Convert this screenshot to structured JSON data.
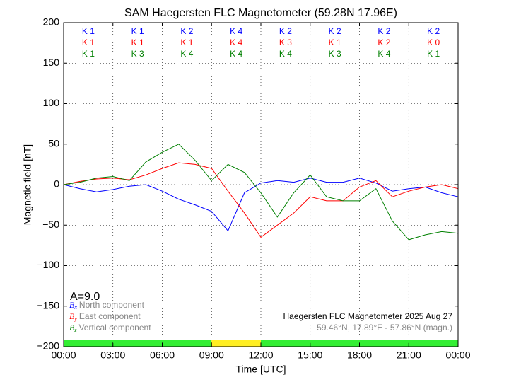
{
  "chart_data": {
    "type": "line",
    "title": "SAM Haegersten FLC Magnetometer (59.28N 17.96E)",
    "xlabel": "Time [UTC]",
    "ylabel": "Magnetic field [nT]",
    "x": [
      0,
      1,
      2,
      3,
      4,
      5,
      6,
      7,
      8,
      9,
      10,
      11,
      12,
      13,
      14,
      15,
      16,
      17,
      18,
      19,
      20,
      21,
      22,
      23,
      24
    ],
    "series": [
      {
        "name": "North component",
        "symbol": "B",
        "sub": "x",
        "color": "#0000ff",
        "values": [
          0,
          -5,
          -9,
          -6,
          -2,
          0,
          -8,
          -18,
          -25,
          -33,
          -57,
          -10,
          2,
          5,
          3,
          8,
          3,
          3,
          8,
          2,
          -8,
          -5,
          -3,
          -10,
          -15
        ]
      },
      {
        "name": "East component",
        "symbol": "B",
        "sub": "y",
        "color": "#ff0000",
        "values": [
          0,
          4,
          7,
          8,
          6,
          12,
          20,
          27,
          25,
          20,
          -8,
          -35,
          -65,
          -50,
          -35,
          -15,
          -20,
          -20,
          -3,
          5,
          -15,
          -8,
          -3,
          0,
          -5
        ]
      },
      {
        "name": "Vertical component",
        "symbol": "B",
        "sub": "z",
        "color": "#008000",
        "values": [
          0,
          3,
          8,
          10,
          5,
          28,
          40,
          50,
          30,
          5,
          25,
          15,
          -10,
          -40,
          -10,
          12,
          -15,
          -20,
          -20,
          -5,
          -45,
          -68,
          -62,
          -58,
          -60
        ]
      }
    ],
    "xlim": [
      0,
      24
    ],
    "xticks": [
      {
        "value": 0,
        "label": "00:00"
      },
      {
        "value": 3,
        "label": "03:00"
      },
      {
        "value": 6,
        "label": "06:00"
      },
      {
        "value": 9,
        "label": "09:00"
      },
      {
        "value": 12,
        "label": "12:00"
      },
      {
        "value": 15,
        "label": "15:00"
      },
      {
        "value": 18,
        "label": "18:00"
      },
      {
        "value": 21,
        "label": "21:00"
      },
      {
        "value": 24,
        "label": "00:00"
      }
    ],
    "ylim": [
      -200,
      200
    ],
    "yticks": [
      {
        "value": -200,
        "label": "−200"
      },
      {
        "value": -150,
        "label": "−150"
      },
      {
        "value": -100,
        "label": "−100"
      },
      {
        "value": -50,
        "label": "−50"
      },
      0,
      50,
      100,
      150,
      200
    ],
    "grid": true,
    "k_indices": [
      [
        "K 1",
        "K 1",
        "K 2",
        "K 4",
        "K 2",
        "K 2",
        "K 2",
        "K 2"
      ],
      [
        "K 1",
        "K 1",
        "K 1",
        "K 4",
        "K 3",
        "K 1",
        "K 2",
        "K 0"
      ],
      [
        "K 1",
        "K 3",
        "K 4",
        "K 4",
        "K 4",
        "K 3",
        "K 4",
        "K 1"
      ]
    ],
    "activity": "A=9.0",
    "station_note": "Haegersten FLC Magnetometer 2025 Aug 27",
    "coords_note": "59.46°N, 17.89°E - 57.86°N (magn.)",
    "status_bar": [
      {
        "start": 0,
        "end": 9,
        "color": "#33ee33"
      },
      {
        "start": 9,
        "end": 12,
        "color": "#ffee22"
      },
      {
        "start": 12,
        "end": 24,
        "color": "#33ee33"
      }
    ]
  }
}
